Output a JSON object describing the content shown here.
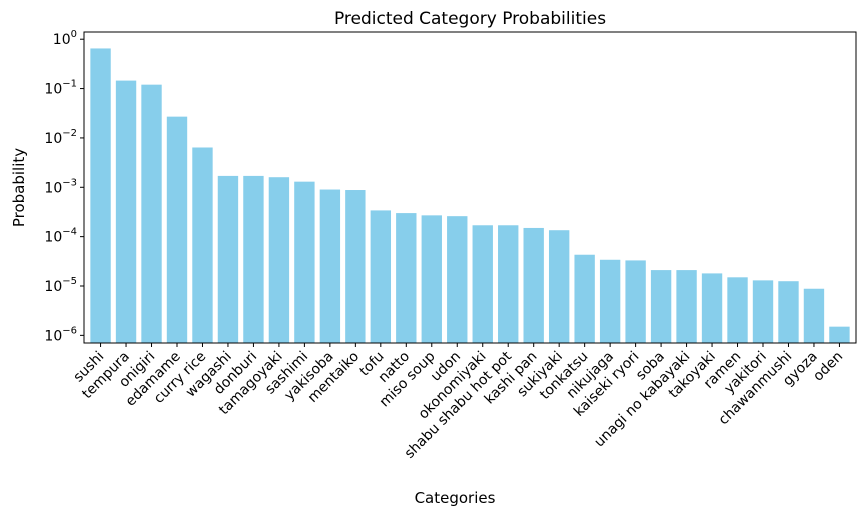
{
  "chart_data": {
    "type": "bar",
    "title": "Predicted Category Probabilities",
    "xlabel": "Categories",
    "ylabel": "Probability",
    "yscale": "log",
    "ylim": [
      7e-07,
      1.4
    ],
    "bar_color": "#87ceeb",
    "grid": false,
    "legend": "none",
    "yticks": [
      {
        "value": 1,
        "base": "10",
        "exp": "0"
      },
      {
        "value": 0.1,
        "base": "10",
        "exp": "−1"
      },
      {
        "value": 0.01,
        "base": "10",
        "exp": "−2"
      },
      {
        "value": 0.001,
        "base": "10",
        "exp": "−3"
      },
      {
        "value": 0.0001,
        "base": "10",
        "exp": "−4"
      },
      {
        "value": 1e-05,
        "base": "10",
        "exp": "−5"
      },
      {
        "value": 1e-06,
        "base": "10",
        "exp": "−6"
      }
    ],
    "categories": [
      "sushi",
      "tempura",
      "onigiri",
      "edamame",
      "curry rice",
      "wagashi",
      "donburi",
      "tamagoyaki",
      "sashimi",
      "yakisoba",
      "mentaiko",
      "tofu",
      "natto",
      "miso soup",
      "udon",
      "okonomiyaki",
      "shabu shabu hot pot",
      "kashi pan",
      "sukiyaki",
      "tonkatsu",
      "nikujaga",
      "kaiseki ryori",
      "soba",
      "unagi no kabayaki",
      "takoyaki",
      "ramen",
      "yakitori",
      "chawanmushi",
      "gyoza",
      "oden"
    ],
    "values": [
      0.65,
      0.145,
      0.12,
      0.027,
      0.0064,
      0.0017,
      0.0017,
      0.0016,
      0.0013,
      0.0009,
      0.00088,
      0.00034,
      0.0003,
      0.00027,
      0.00026,
      0.00017,
      0.00017,
      0.00015,
      0.000135,
      4.3e-05,
      3.4e-05,
      3.3e-05,
      2.1e-05,
      2.1e-05,
      1.8e-05,
      1.5e-05,
      1.3e-05,
      1.25e-05,
      8.8e-06,
      1.5e-06
    ]
  }
}
